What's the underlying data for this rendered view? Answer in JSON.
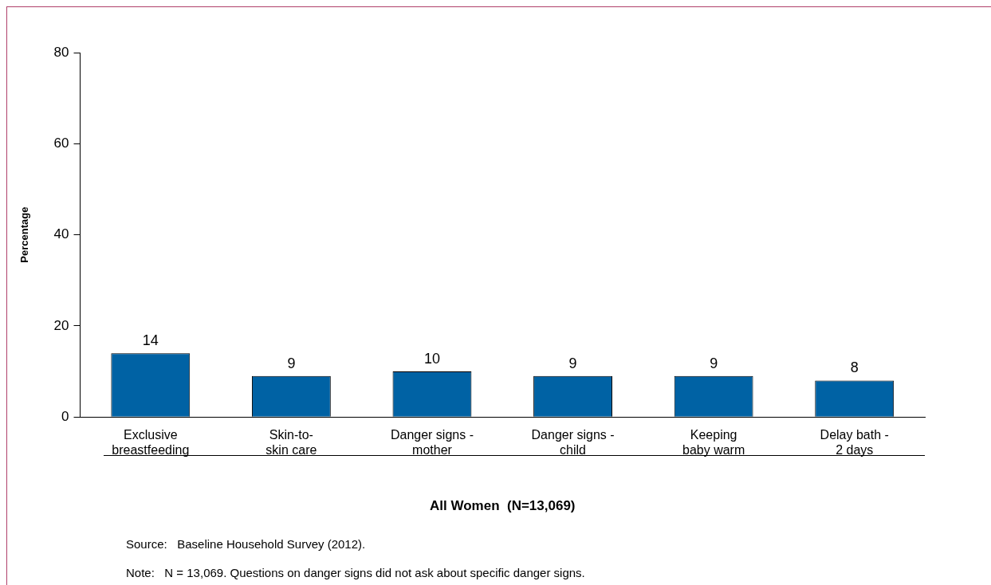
{
  "chart_data": {
    "type": "bar",
    "xlabel": "All Women  (N=13,069)",
    "ylabel": "Percentage",
    "categories": [
      "Exclusive\nbreastfeeding",
      "Skin-to-\nskin care",
      "Danger signs -\nmother",
      "Danger signs -\nchild",
      "Keeping\nbaby warm",
      "Delay bath -\n2 days"
    ],
    "values": [
      14,
      9,
      10,
      9,
      9,
      8
    ],
    "color": "#0062a4",
    "ylim": [
      0,
      80
    ],
    "yticks": [
      0,
      20,
      40,
      60,
      80
    ],
    "grid": false,
    "legend": false,
    "data_labels": true,
    "annotations": [
      "Source:   Baseline Household Survey (2012).",
      "Note:   N = 13,069. Questions on danger signs did not ask about specific danger signs."
    ]
  }
}
